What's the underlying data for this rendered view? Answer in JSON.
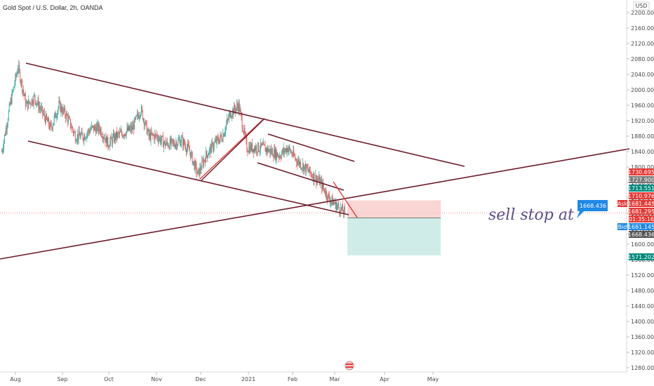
{
  "chart_data": {
    "type": "candlestick",
    "title": "Gold Spot / U.S. Dollar, 2h, OANDA",
    "currency": "USD",
    "y_ticks": [
      "2200.000",
      "2160.000",
      "2120.000",
      "2080.000",
      "2040.000",
      "2000.000",
      "1960.000",
      "1920.000",
      "1880.000",
      "1840.000",
      "1800.000",
      "1760.000",
      "1720.000",
      "1680.000",
      "1640.000",
      "1600.000",
      "1560.000",
      "1520.000",
      "1480.000",
      "1440.000",
      "1400.000",
      "1360.000",
      "1320.000",
      "1280.000"
    ],
    "ylim": [
      1270,
      2205
    ],
    "x_ticks": [
      "Aug",
      "Sep",
      "Oct",
      "Nov",
      "Dec",
      "2021",
      "Feb",
      "Mar",
      "Apr",
      "May"
    ],
    "price_tags": [
      {
        "label": "",
        "value": "1730.695",
        "color": "#e53935"
      },
      {
        "label": "",
        "value": "1727.900",
        "color": "#787878"
      },
      {
        "label": "",
        "value": "1713.551",
        "color": "#00897b"
      },
      {
        "label": "",
        "value": "1710.976",
        "color": "#e53935"
      },
      {
        "label": "Ask",
        "value": "1681.445",
        "color": "#e53935"
      },
      {
        "label": "",
        "value": "1681.295",
        "color": "#e53935"
      },
      {
        "label": "",
        "value": "01:35:16",
        "color": "#e53935"
      },
      {
        "label": "Bid",
        "value": "1681.145",
        "color": "#1e88e5"
      },
      {
        "label": "",
        "value": "1668.436",
        "color": "#555555"
      },
      {
        "label": "",
        "value": "1571.202",
        "color": "#00897b"
      }
    ],
    "callout_price": "1668.436",
    "annotation": "sell stop at",
    "current_price": 1681.295,
    "short_position": {
      "entry": 1668.436,
      "stop": 1713.551,
      "target": 1571.202
    },
    "series_approx_close": [
      1840,
      1960,
      2060,
      1960,
      1980,
      1940,
      1900,
      1960,
      1930,
      1880,
      1880,
      1900,
      1900,
      1860,
      1880,
      1890,
      1900,
      1950,
      1880,
      1880,
      1860,
      1860,
      1870,
      1840,
      1780,
      1830,
      1860,
      1880,
      1940,
      1960,
      1850,
      1850,
      1850,
      1840,
      1830,
      1850,
      1820,
      1800,
      1780,
      1760,
      1720,
      1700,
      1681
    ],
    "colors": {
      "up": "#26a69a",
      "down": "#ef5350",
      "trendline": "#6d1b2a",
      "stop_zone": "#f7c7c4",
      "target_zone": "#bfe6e0",
      "callout": "#1e88e5"
    }
  }
}
